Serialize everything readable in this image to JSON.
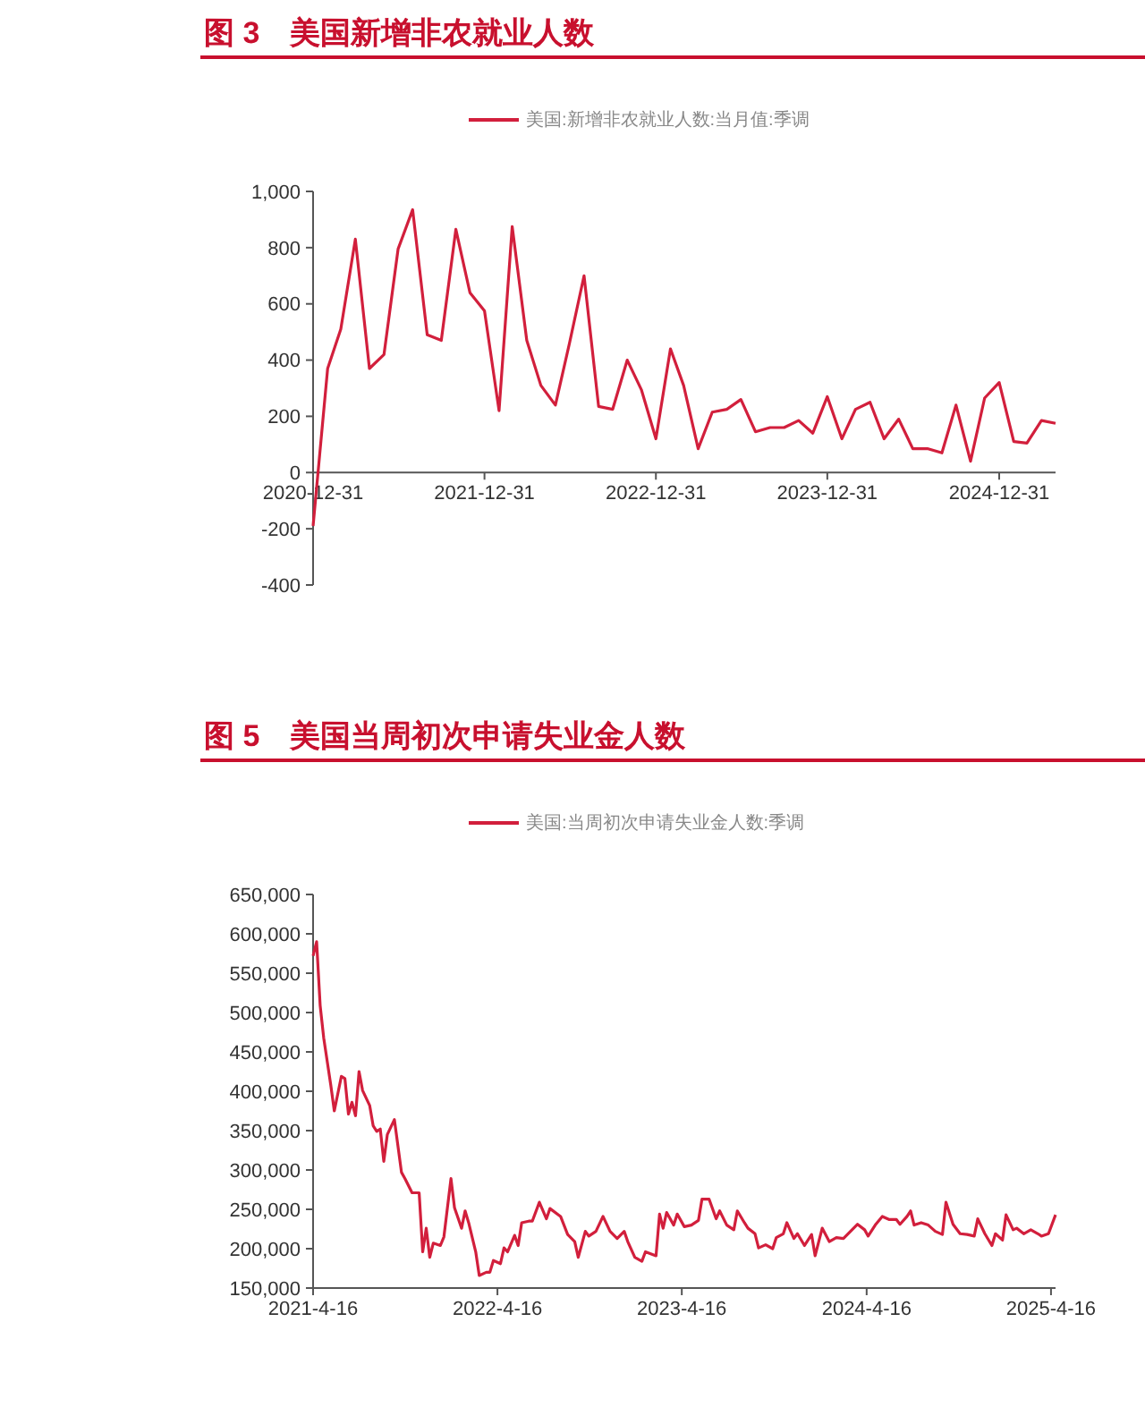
{
  "chart_data": [
    {
      "type": "line",
      "title": "图 3　美国新增非农就业人数",
      "legend": "top",
      "x": [
        "2020-12-31",
        "2021-01-31",
        "2021-02-28",
        "2021-03-31",
        "2021-04-30",
        "2021-05-31",
        "2021-06-30",
        "2021-07-31",
        "2021-08-31",
        "2021-09-30",
        "2021-10-31",
        "2021-11-30",
        "2021-12-31",
        "2022-01-31",
        "2022-02-28",
        "2022-03-31",
        "2022-04-30",
        "2022-05-31",
        "2022-06-30",
        "2022-07-31",
        "2022-08-31",
        "2022-09-30",
        "2022-10-31",
        "2022-11-30",
        "2022-12-31",
        "2023-01-31",
        "2023-02-28",
        "2023-03-31",
        "2023-04-30",
        "2023-05-31",
        "2023-06-30",
        "2023-07-31",
        "2023-08-31",
        "2023-09-30",
        "2023-10-31",
        "2023-11-30",
        "2023-12-31",
        "2024-01-31",
        "2024-02-29",
        "2024-03-31",
        "2024-04-30",
        "2024-05-31",
        "2024-06-30",
        "2024-07-31",
        "2024-08-31",
        "2024-09-30",
        "2024-10-31",
        "2024-11-30",
        "2024-12-31",
        "2025-01-31",
        "2025-02-28",
        "2025-03-31",
        "2025-04-30"
      ],
      "series": [
        {
          "name": "美国:新增非农就业人数:当月值:季调",
          "color": "#d21f3c",
          "values": [
            -190,
            370,
            510,
            830,
            370,
            420,
            795,
            935,
            490,
            470,
            865,
            640,
            575,
            220,
            875,
            470,
            310,
            240,
            460,
            700,
            235,
            225,
            400,
            295,
            120,
            440,
            310,
            85,
            215,
            225,
            260,
            145,
            160,
            160,
            185,
            140,
            270,
            120,
            225,
            250,
            120,
            190,
            85,
            85,
            70,
            240,
            40,
            265,
            320,
            110,
            105,
            185,
            175
          ]
        }
      ],
      "xlim": [
        "2020-12-31",
        "2025-04-30"
      ],
      "xticks": [
        {
          "value": "2020-12-31",
          "label": "2020-12-31"
        },
        {
          "value": "2021-12-31",
          "label": "2021-12-31"
        },
        {
          "value": "2022-12-31",
          "label": "2022-12-31"
        },
        {
          "value": "2023-12-31",
          "label": "2023-12-31"
        },
        {
          "value": "2024-12-31",
          "label": "2024-12-31"
        }
      ],
      "ylim": [
        -400,
        1000
      ],
      "yticks": [
        -400,
        -200,
        0,
        200,
        400,
        600,
        800,
        {
          "value": 1000,
          "label": "1,000"
        }
      ]
    },
    {
      "type": "line",
      "title": "图 5　美国当周初次申请失业金人数",
      "legend": "top",
      "x": [
        "2021-04-16",
        "2021-04-23",
        "2021-04-30",
        "2021-05-07",
        "2021-05-21",
        "2021-05-28",
        "2021-06-11",
        "2021-06-18",
        "2021-06-25",
        "2021-07-02",
        "2021-07-09",
        "2021-07-16",
        "2021-07-23",
        "2021-08-06",
        "2021-08-13",
        "2021-08-20",
        "2021-08-27",
        "2021-09-03",
        "2021-09-10",
        "2021-09-24",
        "2021-10-08",
        "2021-10-15",
        "2021-10-29",
        "2021-11-12",
        "2021-11-19",
        "2021-11-26",
        "2021-12-03",
        "2021-12-10",
        "2021-12-24",
        "2021-12-31",
        "2022-01-14",
        "2022-01-21",
        "2022-02-04",
        "2022-02-11",
        "2022-02-18",
        "2022-03-04",
        "2022-03-11",
        "2022-03-25",
        "2022-04-01",
        "2022-04-08",
        "2022-04-22",
        "2022-04-29",
        "2022-05-06",
        "2022-05-20",
        "2022-05-27",
        "2022-06-03",
        "2022-06-17",
        "2022-06-24",
        "2022-07-08",
        "2022-07-22",
        "2022-07-29",
        "2022-08-19",
        "2022-09-02",
        "2022-09-16",
        "2022-09-23",
        "2022-10-07",
        "2022-10-14",
        "2022-10-28",
        "2022-11-11",
        "2022-11-25",
        "2022-12-09",
        "2022-12-23",
        "2022-12-30",
        "2023-01-13",
        "2023-01-27",
        "2023-02-03",
        "2023-02-24",
        "2023-03-03",
        "2023-03-10",
        "2023-03-17",
        "2023-03-31",
        "2023-04-07",
        "2023-04-21",
        "2023-05-05",
        "2023-05-19",
        "2023-05-26",
        "2023-06-09",
        "2023-06-23",
        "2023-06-30",
        "2023-07-14",
        "2023-07-28",
        "2023-08-04",
        "2023-08-18",
        "2023-08-25",
        "2023-09-08",
        "2023-09-15",
        "2023-09-29",
        "2023-10-13",
        "2023-10-20",
        "2023-11-03",
        "2023-11-10",
        "2023-11-24",
        "2023-12-01",
        "2023-12-15",
        "2023-12-29",
        "2024-01-05",
        "2024-01-19",
        "2024-02-02",
        "2024-02-16",
        "2024-03-01",
        "2024-03-15",
        "2024-03-29",
        "2024-04-12",
        "2024-04-19",
        "2024-05-03",
        "2024-05-17",
        "2024-05-31",
        "2024-06-14",
        "2024-06-21",
        "2024-07-05",
        "2024-07-12",
        "2024-07-19",
        "2024-08-02",
        "2024-08-16",
        "2024-08-30",
        "2024-09-13",
        "2024-09-20",
        "2024-10-04",
        "2024-10-18",
        "2024-11-01",
        "2024-11-15",
        "2024-11-22",
        "2024-12-06",
        "2024-12-20",
        "2024-12-27",
        "2025-01-10",
        "2025-01-17",
        "2025-01-31",
        "2025-02-07",
        "2025-02-21",
        "2025-03-07",
        "2025-03-21",
        "2025-03-28",
        "2025-04-11",
        "2025-04-25"
      ],
      "series": [
        {
          "name": "美国:当周初次申请失业金人数:季调",
          "color": "#d21f3c",
          "values": [
            572000,
            590000,
            509000,
            468000,
            408000,
            375000,
            419000,
            416000,
            371000,
            386000,
            369000,
            425000,
            401000,
            382000,
            356000,
            349000,
            352000,
            311000,
            345000,
            364000,
            297000,
            289000,
            271000,
            271000,
            196000,
            226000,
            189000,
            207000,
            204000,
            215000,
            289000,
            252000,
            226000,
            248000,
            233000,
            196000,
            166000,
            170000,
            170000,
            185000,
            181000,
            201000,
            196000,
            217000,
            204000,
            233000,
            235000,
            235000,
            259000,
            238000,
            251000,
            241000,
            218000,
            209000,
            189000,
            222000,
            216000,
            222000,
            241000,
            222000,
            213000,
            222000,
            209000,
            189000,
            184000,
            196000,
            191000,
            244000,
            226000,
            246000,
            230000,
            244000,
            228000,
            230000,
            236000,
            263000,
            263000,
            238000,
            248000,
            230000,
            224000,
            248000,
            233000,
            226000,
            219000,
            201000,
            205000,
            200000,
            214000,
            219000,
            233000,
            213000,
            219000,
            204000,
            218000,
            191000,
            226000,
            209000,
            214000,
            213000,
            222000,
            231000,
            224000,
            216000,
            230000,
            241000,
            237000,
            237000,
            231000,
            241000,
            248000,
            230000,
            233000,
            230000,
            222000,
            218000,
            259000,
            231000,
            219000,
            218000,
            216000,
            238000,
            219000,
            204000,
            219000,
            211000,
            243000,
            224000,
            226000,
            219000,
            224000,
            219000,
            216000,
            219000,
            243000
          ]
        }
      ],
      "xlim": [
        "2021-04-16",
        "2025-04-25"
      ],
      "xticks": [
        {
          "value": "2021-04-16",
          "label": "2021-4-16"
        },
        {
          "value": "2022-04-16",
          "label": "2022-4-16"
        },
        {
          "value": "2023-04-16",
          "label": "2023-4-16"
        },
        {
          "value": "2024-04-16",
          "label": "2024-4-16"
        },
        {
          "value": "2025-04-16",
          "label": "2025-4-16"
        }
      ],
      "ylim": [
        150000,
        650000
      ],
      "yticks": [
        {
          "value": 150000,
          "label": "150,000"
        },
        {
          "value": 200000,
          "label": "200,000"
        },
        {
          "value": 250000,
          "label": "250,000"
        },
        {
          "value": 300000,
          "label": "300,000"
        },
        {
          "value": 350000,
          "label": "350,000"
        },
        {
          "value": 400000,
          "label": "400,000"
        },
        {
          "value": 450000,
          "label": "450,000"
        },
        {
          "value": 500000,
          "label": "500,000"
        },
        {
          "value": 550000,
          "label": "550,000"
        },
        {
          "value": 600000,
          "label": "600,000"
        },
        {
          "value": 650000,
          "label": "650,000"
        }
      ]
    }
  ]
}
